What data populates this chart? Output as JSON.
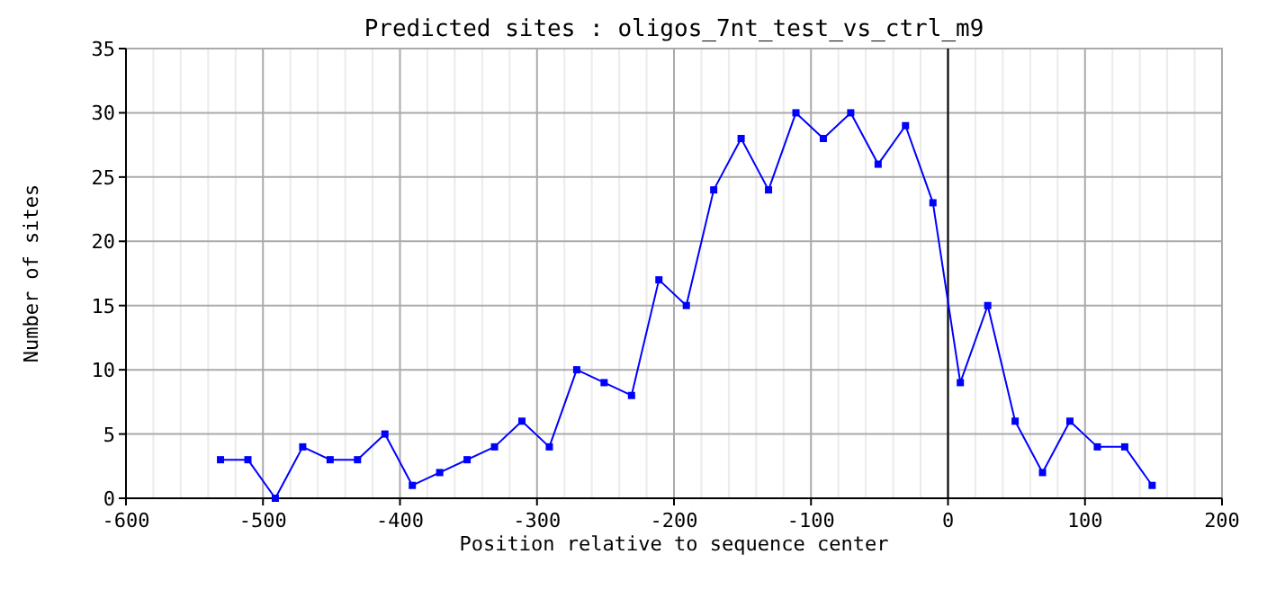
{
  "chart_data": {
    "type": "line",
    "title": "Predicted sites : oligos_7nt_test_vs_ctrl_m9",
    "xlabel": "Position relative to sequence center",
    "ylabel": "Number of sites",
    "x": [
      -531,
      -511,
      -491,
      -471,
      -451,
      -431,
      -411,
      -391,
      -371,
      -351,
      -331,
      -311,
      -291,
      -271,
      -251,
      -231,
      -211,
      -191,
      -171,
      -151,
      -131,
      -111,
      -91,
      -71,
      -51,
      -31,
      -11,
      9,
      29,
      49,
      69,
      89,
      109,
      129,
      149
    ],
    "series": [
      {
        "color": "#0000ff",
        "values": [
          3,
          3,
          0,
          4,
          3,
          3,
          5,
          1,
          2,
          3,
          4,
          6,
          4,
          10,
          9,
          8,
          17,
          15,
          24,
          28,
          24,
          30,
          28,
          30,
          26,
          29,
          23,
          9,
          15,
          6,
          2,
          6,
          4,
          4,
          1
        ]
      }
    ],
    "xlim": [
      -600,
      200
    ],
    "xticks": [
      -600,
      -500,
      -400,
      -300,
      -200,
      -100,
      0,
      100,
      200
    ],
    "ylim": [
      0,
      35
    ],
    "yticks": [
      0,
      5,
      10,
      15,
      20,
      25,
      30,
      35
    ],
    "grid": true,
    "marker": "square",
    "line_style": "solid",
    "ref_lines": [
      {
        "axis": "x",
        "value": 0,
        "color": "#000000"
      }
    ]
  }
}
